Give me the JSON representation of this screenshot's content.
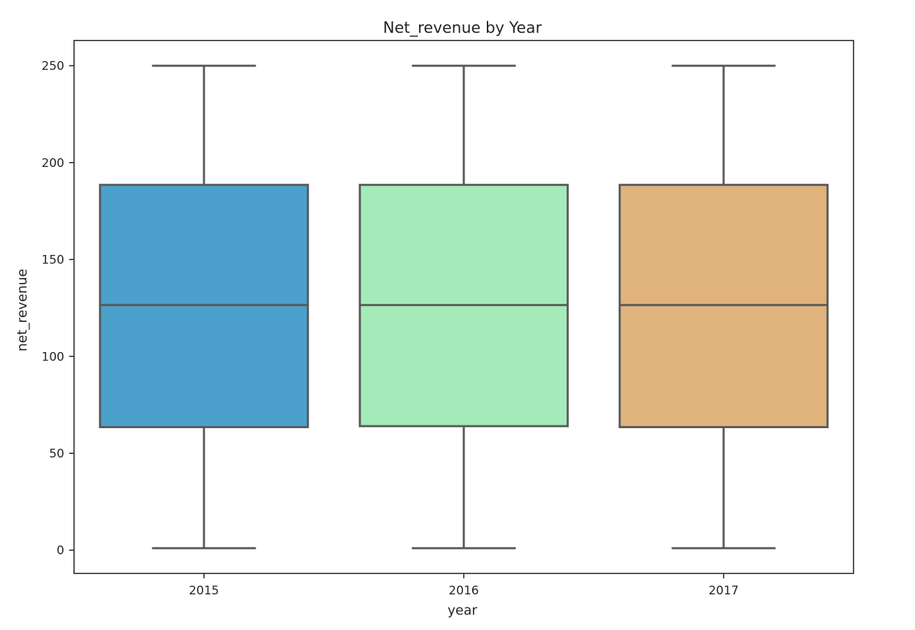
{
  "chart_data": {
    "type": "box",
    "title": "Net_revenue by Year",
    "xlabel": "year",
    "ylabel": "net_revenue",
    "ylim": [
      -12,
      263
    ],
    "y_ticks": [
      0,
      50,
      100,
      150,
      200,
      250
    ],
    "grid": false,
    "legend": "none",
    "categories": [
      "2015",
      "2016",
      "2017"
    ],
    "boxes": [
      {
        "category": "2015",
        "whisker_low": 1,
        "q1": 63.5,
        "median": 126.5,
        "q3": 188.5,
        "whisker_high": 250,
        "color": "#4ba1cc"
      },
      {
        "category": "2016",
        "whisker_low": 1,
        "q1": 64,
        "median": 126.5,
        "q3": 188.5,
        "whisker_high": 250,
        "color": "#a5ebb9"
      },
      {
        "category": "2017",
        "whisker_low": 1,
        "q1": 63.5,
        "median": 126.5,
        "q3": 188.5,
        "whisker_high": 250,
        "color": "#e0b27c"
      }
    ]
  }
}
